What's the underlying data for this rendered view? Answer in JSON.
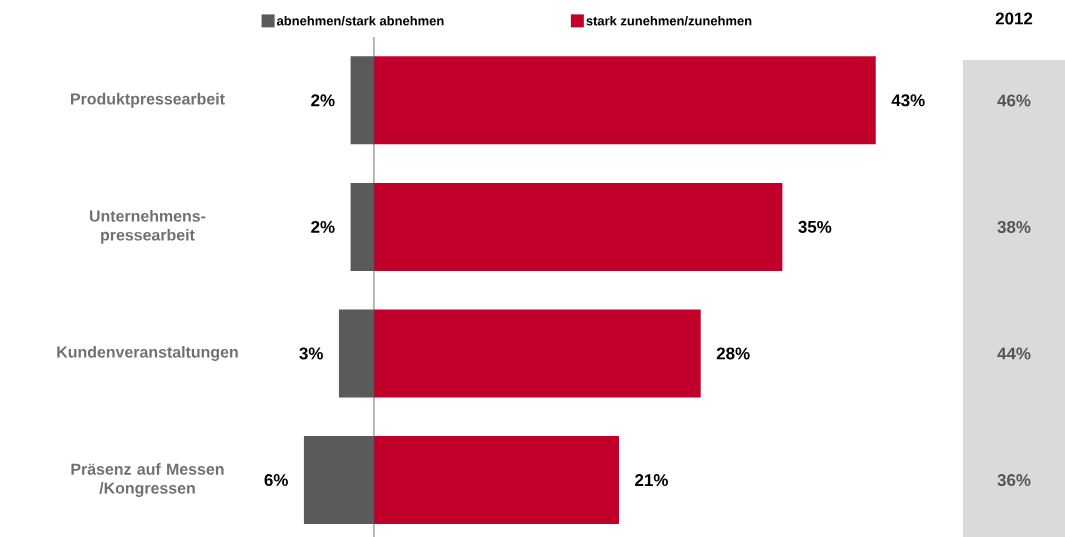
{
  "chart_data": [
    {
      "type": "bar",
      "orientation": "horizontal",
      "categories": [
        "Produktpressearbeit",
        "Unternehmens-pressearbeit",
        "Kundenveranstaltungen",
        "Präsenz auf Messen /Kongressen"
      ],
      "tick_labels": "y",
      "series": [
        {
          "name": "abnehmen/stark abnehmen",
          "color": "#5a5a5a",
          "values": [
            2,
            2,
            3,
            6
          ],
          "value_labels": [
            "2%",
            "2%",
            "3%",
            "6%"
          ]
        }
      ],
      "legend": "top"
    },
    {
      "type": "bar",
      "orientation": "horizontal",
      "categories": [
        null,
        null,
        null,
        null
      ],
      "tick_labels": false,
      "series": [
        {
          "name": "stark zunehmen/zunehmen",
          "color": "#c0002a",
          "values": [
            43,
            35,
            28,
            21
          ],
          "value_labels": [
            "43%",
            "35%",
            "28%",
            "21%"
          ]
        }
      ],
      "legend": "top"
    },
    {
      "type": "other",
      "title": "2012",
      "annotations": [
        "46%",
        "38%",
        "44%",
        "36%"
      ]
    }
  ]
}
